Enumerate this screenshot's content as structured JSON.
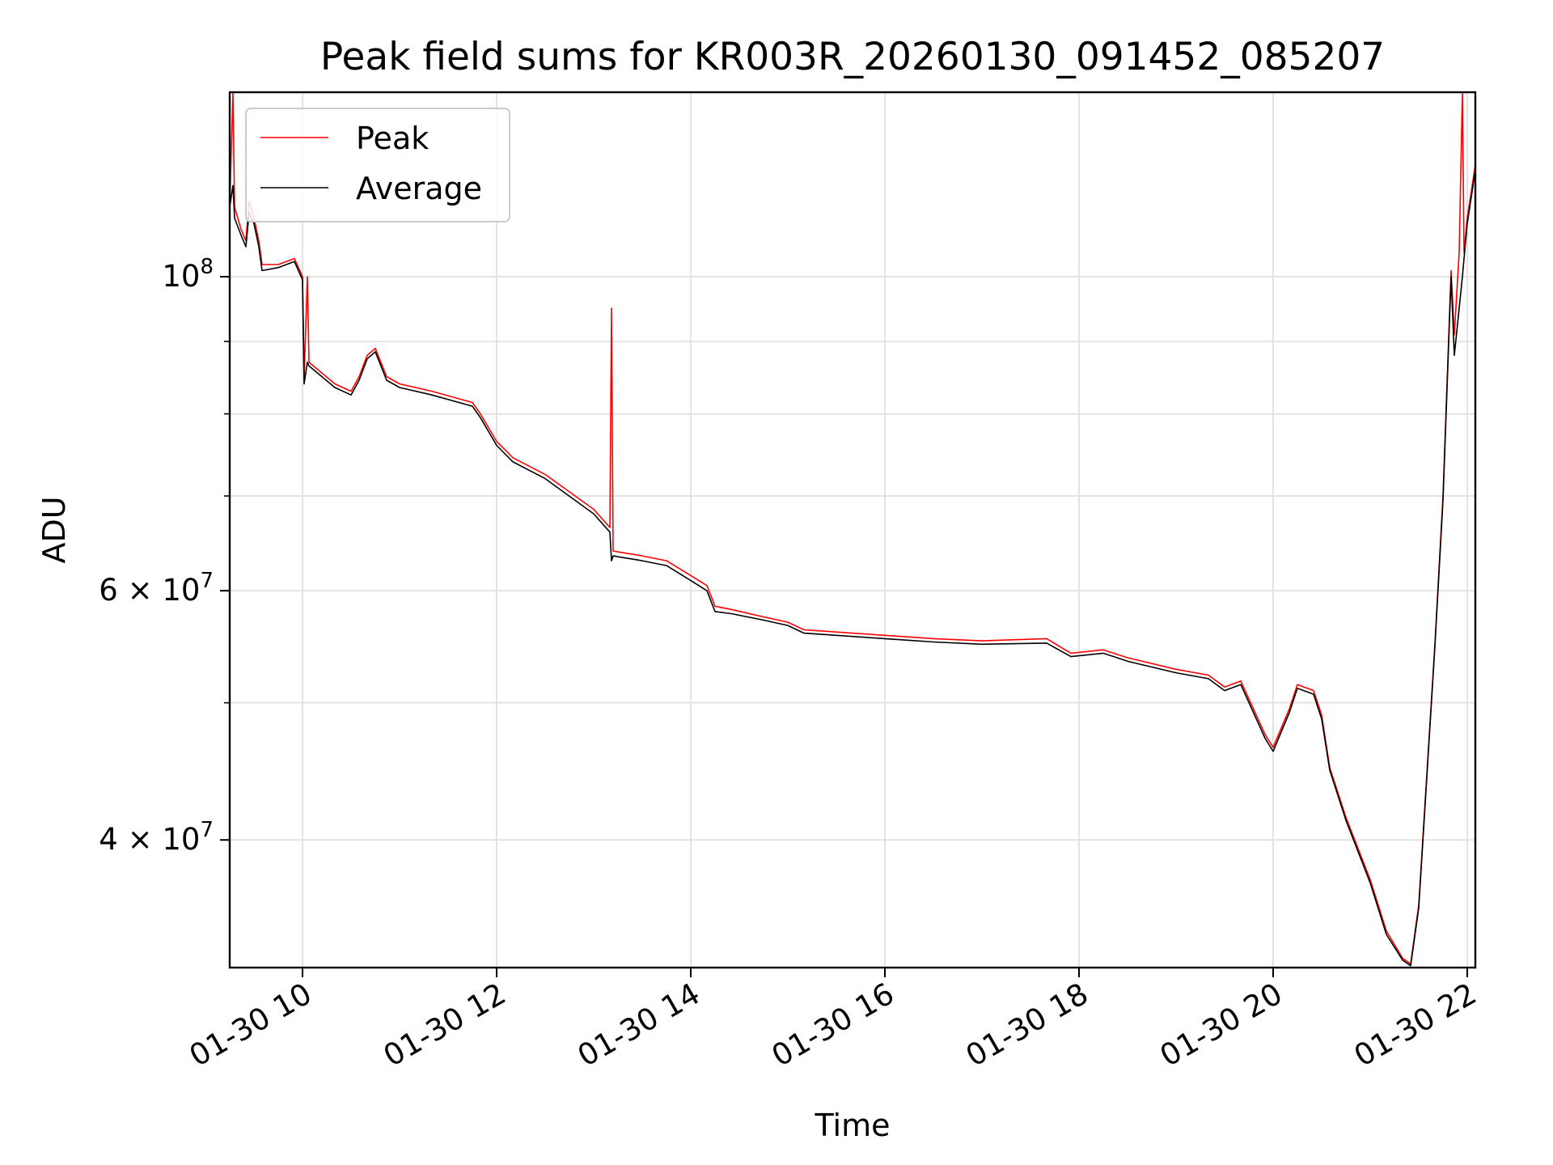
{
  "chart_data": {
    "type": "line",
    "title": "Peak field sums for KR003R_20260130_091452_085207",
    "xlabel": "Time",
    "ylabel": "ADU",
    "xlim": [
      "2026-01-30 09:15",
      "2026-01-30 22:05"
    ],
    "ylim": [
      32500000,
      135000000
    ],
    "yscale": "log",
    "grid": true,
    "legend_position": "upper-left",
    "x_ticks": [
      "2026-01-30 10:00",
      "2026-01-30 12:00",
      "2026-01-30 14:00",
      "2026-01-30 16:00",
      "2026-01-30 18:00",
      "2026-01-30 20:00",
      "2026-01-30 22:00"
    ],
    "x_tick_labels": [
      "01-30 10",
      "01-30 12",
      "01-30 14",
      "01-30 16",
      "01-30 18",
      "01-30 20",
      "01-30 22"
    ],
    "y_major_ticks": [
      100000000,
      60000000,
      40000000
    ],
    "y_major_tick_labels": [
      {
        "base": "10",
        "exp": "8"
      },
      {
        "base": "6 × 10",
        "exp": "7"
      },
      {
        "base": "4 × 10",
        "exp": "7"
      }
    ],
    "y_minor_gridlines": [
      50000000,
      70000000,
      80000000,
      90000000
    ],
    "series": [
      {
        "name": "Peak",
        "color": "#ff0000",
        "points": [
          [
            "2026-01-30 09:15",
            112000000
          ],
          [
            "2026-01-30 09:17",
            135000000
          ],
          [
            "2026-01-30 09:18",
            112000000
          ],
          [
            "2026-01-30 09:22",
            108000000
          ],
          [
            "2026-01-30 09:25",
            106000000
          ],
          [
            "2026-01-30 09:27",
            113000000
          ],
          [
            "2026-01-30 09:30",
            110000000
          ],
          [
            "2026-01-30 09:33",
            106000000
          ],
          [
            "2026-01-30 09:35",
            102000000
          ],
          [
            "2026-01-30 09:45",
            102000000
          ],
          [
            "2026-01-30 09:55",
            103000000
          ],
          [
            "2026-01-30 10:00",
            100000000
          ],
          [
            "2026-01-30 10:01",
            85000000
          ],
          [
            "2026-01-30 10:03",
            100000000
          ],
          [
            "2026-01-30 10:04",
            87000000
          ],
          [
            "2026-01-30 10:20",
            84000000
          ],
          [
            "2026-01-30 10:30",
            83000000
          ],
          [
            "2026-01-30 10:35",
            85000000
          ],
          [
            "2026-01-30 10:40",
            88000000
          ],
          [
            "2026-01-30 10:45",
            89000000
          ],
          [
            "2026-01-30 10:52",
            85000000
          ],
          [
            "2026-01-30 11:00",
            84000000
          ],
          [
            "2026-01-30 11:20",
            83000000
          ],
          [
            "2026-01-30 11:45",
            81500000
          ],
          [
            "2026-01-30 11:50",
            80000000
          ],
          [
            "2026-01-30 12:00",
            76500000
          ],
          [
            "2026-01-30 12:10",
            74500000
          ],
          [
            "2026-01-30 12:30",
            72500000
          ],
          [
            "2026-01-30 13:00",
            68500000
          ],
          [
            "2026-01-30 13:10",
            66500000
          ],
          [
            "2026-01-30 13:11",
            95000000
          ],
          [
            "2026-01-30 13:12",
            64000000
          ],
          [
            "2026-01-30 13:30",
            63500000
          ],
          [
            "2026-01-30 13:45",
            63000000
          ],
          [
            "2026-01-30 14:00",
            61500000
          ],
          [
            "2026-01-30 14:10",
            60500000
          ],
          [
            "2026-01-30 14:15",
            58500000
          ],
          [
            "2026-01-30 14:25",
            58200000
          ],
          [
            "2026-01-30 14:45",
            57500000
          ],
          [
            "2026-01-30 15:00",
            57000000
          ],
          [
            "2026-01-30 15:10",
            56300000
          ],
          [
            "2026-01-30 15:30",
            56100000
          ],
          [
            "2026-01-30 16:00",
            55800000
          ],
          [
            "2026-01-30 16:30",
            55500000
          ],
          [
            "2026-01-30 17:00",
            55300000
          ],
          [
            "2026-01-30 17:40",
            55500000
          ],
          [
            "2026-01-30 17:55",
            54200000
          ],
          [
            "2026-01-30 18:15",
            54500000
          ],
          [
            "2026-01-30 18:30",
            53800000
          ],
          [
            "2026-01-30 19:00",
            52800000
          ],
          [
            "2026-01-30 19:20",
            52300000
          ],
          [
            "2026-01-30 19:30",
            51300000
          ],
          [
            "2026-01-30 19:40",
            51800000
          ],
          [
            "2026-01-30 19:55",
            47500000
          ],
          [
            "2026-01-30 20:00",
            46500000
          ],
          [
            "2026-01-30 20:10",
            49500000
          ],
          [
            "2026-01-30 20:15",
            51500000
          ],
          [
            "2026-01-30 20:25",
            51000000
          ],
          [
            "2026-01-30 20:30",
            49000000
          ],
          [
            "2026-01-30 20:35",
            45000000
          ],
          [
            "2026-01-30 20:45",
            41500000
          ],
          [
            "2026-01-30 21:00",
            37500000
          ],
          [
            "2026-01-30 21:10",
            34500000
          ],
          [
            "2026-01-30 21:20",
            33000000
          ],
          [
            "2026-01-30 21:25",
            32700000
          ],
          [
            "2026-01-30 21:30",
            36000000
          ],
          [
            "2026-01-30 21:40",
            55000000
          ],
          [
            "2026-01-30 21:45",
            70000000
          ],
          [
            "2026-01-30 21:50",
            101000000
          ],
          [
            "2026-01-30 21:52",
            91000000
          ],
          [
            "2026-01-30 21:55",
            104000000
          ],
          [
            "2026-01-30 21:57",
            135000000
          ],
          [
            "2026-01-30 21:58",
            104000000
          ],
          [
            "2026-01-30 22:00",
            110000000
          ],
          [
            "2026-01-30 22:05",
            120000000
          ]
        ]
      },
      {
        "name": "Average",
        "color": "#000000",
        "points": [
          [
            "2026-01-30 09:15",
            112000000
          ],
          [
            "2026-01-30 09:17",
            116000000
          ],
          [
            "2026-01-30 09:18",
            110000000
          ],
          [
            "2026-01-30 09:22",
            107000000
          ],
          [
            "2026-01-30 09:25",
            105000000
          ],
          [
            "2026-01-30 09:27",
            111000000
          ],
          [
            "2026-01-30 09:30",
            109000000
          ],
          [
            "2026-01-30 09:33",
            105000000
          ],
          [
            "2026-01-30 09:35",
            101000000
          ],
          [
            "2026-01-30 09:45",
            101500000
          ],
          [
            "2026-01-30 09:55",
            102500000
          ],
          [
            "2026-01-30 10:00",
            99500000
          ],
          [
            "2026-01-30 10:01",
            84000000
          ],
          [
            "2026-01-30 10:03",
            87000000
          ],
          [
            "2026-01-30 10:04",
            86500000
          ],
          [
            "2026-01-30 10:20",
            83500000
          ],
          [
            "2026-01-30 10:30",
            82500000
          ],
          [
            "2026-01-30 10:35",
            84500000
          ],
          [
            "2026-01-30 10:40",
            87500000
          ],
          [
            "2026-01-30 10:45",
            88500000
          ],
          [
            "2026-01-30 10:52",
            84500000
          ],
          [
            "2026-01-30 11:00",
            83500000
          ],
          [
            "2026-01-30 11:20",
            82500000
          ],
          [
            "2026-01-30 11:45",
            81000000
          ],
          [
            "2026-01-30 11:50",
            79500000
          ],
          [
            "2026-01-30 12:00",
            76000000
          ],
          [
            "2026-01-30 12:10",
            74000000
          ],
          [
            "2026-01-30 12:30",
            72000000
          ],
          [
            "2026-01-30 13:00",
            68000000
          ],
          [
            "2026-01-30 13:10",
            66000000
          ],
          [
            "2026-01-30 13:11",
            63000000
          ],
          [
            "2026-01-30 13:12",
            63500000
          ],
          [
            "2026-01-30 13:30",
            63000000
          ],
          [
            "2026-01-30 13:45",
            62500000
          ],
          [
            "2026-01-30 14:00",
            61000000
          ],
          [
            "2026-01-30 14:10",
            60000000
          ],
          [
            "2026-01-30 14:15",
            58000000
          ],
          [
            "2026-01-30 14:25",
            57800000
          ],
          [
            "2026-01-30 14:45",
            57200000
          ],
          [
            "2026-01-30 15:00",
            56700000
          ],
          [
            "2026-01-30 15:10",
            56000000
          ],
          [
            "2026-01-30 15:30",
            55800000
          ],
          [
            "2026-01-30 16:00",
            55500000
          ],
          [
            "2026-01-30 16:30",
            55200000
          ],
          [
            "2026-01-30 17:00",
            55000000
          ],
          [
            "2026-01-30 17:40",
            55100000
          ],
          [
            "2026-01-30 17:55",
            53900000
          ],
          [
            "2026-01-30 18:15",
            54200000
          ],
          [
            "2026-01-30 18:30",
            53500000
          ],
          [
            "2026-01-30 19:00",
            52500000
          ],
          [
            "2026-01-30 19:20",
            52000000
          ],
          [
            "2026-01-30 19:30",
            51000000
          ],
          [
            "2026-01-30 19:40",
            51500000
          ],
          [
            "2026-01-30 19:55",
            47200000
          ],
          [
            "2026-01-30 20:00",
            46200000
          ],
          [
            "2026-01-30 20:10",
            49200000
          ],
          [
            "2026-01-30 20:15",
            51200000
          ],
          [
            "2026-01-30 20:25",
            50700000
          ],
          [
            "2026-01-30 20:30",
            48700000
          ],
          [
            "2026-01-30 20:35",
            44800000
          ],
          [
            "2026-01-30 20:45",
            41300000
          ],
          [
            "2026-01-30 21:00",
            37300000
          ],
          [
            "2026-01-30 21:10",
            34300000
          ],
          [
            "2026-01-30 21:20",
            32900000
          ],
          [
            "2026-01-30 21:25",
            32600000
          ],
          [
            "2026-01-30 21:30",
            35800000
          ],
          [
            "2026-01-30 21:40",
            54800000
          ],
          [
            "2026-01-30 21:45",
            69500000
          ],
          [
            "2026-01-30 21:50",
            100000000
          ],
          [
            "2026-01-30 21:52",
            88000000
          ],
          [
            "2026-01-30 21:55",
            95000000
          ],
          [
            "2026-01-30 21:57",
            100000000
          ],
          [
            "2026-01-30 21:58",
            103000000
          ],
          [
            "2026-01-30 22:00",
            109000000
          ],
          [
            "2026-01-30 22:05",
            119000000
          ]
        ]
      }
    ]
  }
}
